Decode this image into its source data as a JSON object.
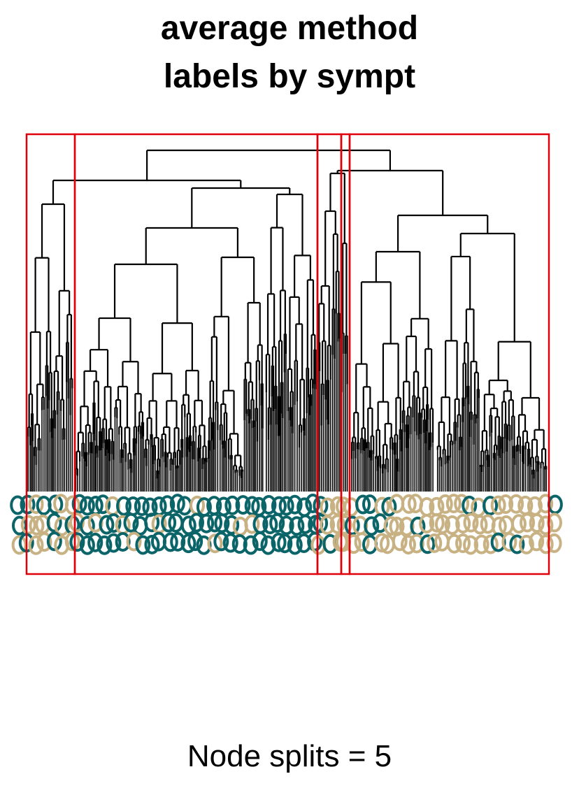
{
  "title_line1": "average method",
  "title_line2": "labels by sympt",
  "footer": "Node splits = 5",
  "colors": {
    "branch": "#000000",
    "cluster_box": "#e0000a",
    "label_teal": "#0b6468",
    "label_tan": "#c8b284"
  },
  "chart_data": {
    "type": "dendrogram",
    "title": "average method\nlabels by sympt",
    "method": "average",
    "node_splits": 5,
    "cluster_count": 5,
    "leaf_label_colors": [
      "#0b6468",
      "#c8b284"
    ],
    "cluster_leaf_color_pattern": [
      "mixed",
      "teal",
      "mixed",
      "tan",
      "tan"
    ]
  }
}
